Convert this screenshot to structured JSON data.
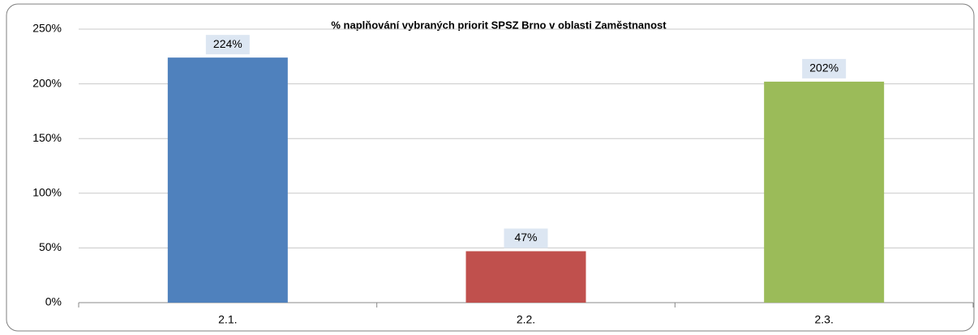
{
  "chart_data": {
    "type": "bar",
    "title": "% naplňování vybraných priorit SPSZ Brno v oblasti Zaměstnanost",
    "categories": [
      "2.1.",
      "2.2.",
      "2.3."
    ],
    "values": [
      224,
      47,
      202
    ],
    "value_labels": [
      "224%",
      "47%",
      "202%"
    ],
    "colors": [
      "#4f81bd",
      "#c0504d",
      "#9bbb59"
    ],
    "ylim": [
      0,
      250
    ],
    "yticks": [
      {
        "value": 0,
        "label": "0%"
      },
      {
        "value": 50,
        "label": "50%"
      },
      {
        "value": 100,
        "label": "100%"
      },
      {
        "value": 150,
        "label": "150%"
      },
      {
        "value": 200,
        "label": "200%"
      },
      {
        "value": 250,
        "label": "250%"
      }
    ],
    "grid": true
  }
}
